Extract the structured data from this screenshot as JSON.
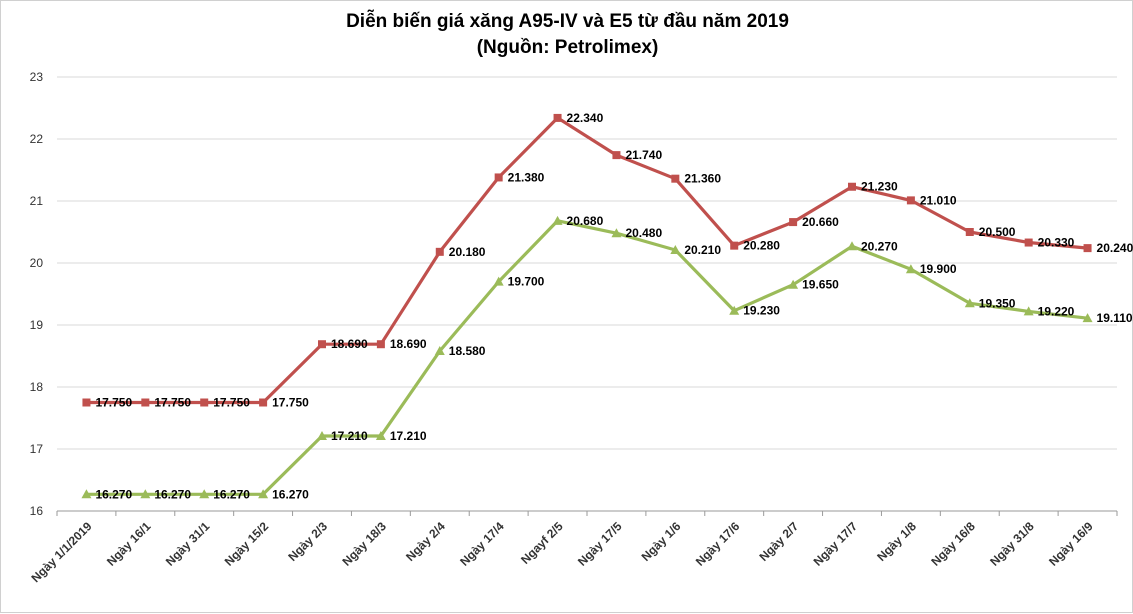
{
  "chart_data": {
    "type": "line",
    "title": "Diễn biến giá xăng A95-IV và E5 từ đầu năm 2019",
    "subtitle": "(Nguồn: Petrolimex)",
    "xlabel": "",
    "ylabel": "",
    "ylim": [
      16,
      23
    ],
    "yticks": [
      "16",
      "17",
      "18",
      "19",
      "20",
      "21",
      "22",
      "23"
    ],
    "grid": true,
    "legend": "none",
    "categories": [
      "Ngày 1/1/2019",
      "Ngày 16/1",
      "Ngày 31/1",
      "Ngày 15/2",
      "Ngày 2/3",
      "Ngày 18/3",
      "Ngày 2/4",
      "Ngày 17/4",
      "Ngayf 2/5",
      "Ngày 17/5",
      "Ngày 1/6",
      "Ngày 17/6",
      "Ngày 2/7",
      "Ngày 17/7",
      "Ngày 1/8",
      "Ngày 16/8",
      "Ngày 31/8",
      "Ngày 16/9"
    ],
    "series": [
      {
        "name": "A95-IV",
        "color": "#c0504d",
        "marker": "square",
        "values": [
          17.75,
          17.75,
          17.75,
          17.75,
          18.69,
          18.69,
          20.18,
          21.38,
          22.34,
          21.74,
          21.36,
          20.28,
          20.66,
          21.23,
          21.01,
          20.5,
          20.33,
          20.24
        ],
        "labels": [
          "17.750",
          "17.750",
          "17.750",
          "17.750",
          "18.690",
          "18.690",
          "20.180",
          "21.380",
          "22.340",
          "21.740",
          "21.360",
          "20.280",
          "20.660",
          "21.230",
          "21.010",
          "20.500",
          "20.330",
          "20.240"
        ]
      },
      {
        "name": "E5",
        "color": "#9bbb59",
        "marker": "triangle",
        "values": [
          16.27,
          16.27,
          16.27,
          16.27,
          17.21,
          17.21,
          18.58,
          19.7,
          20.68,
          20.48,
          20.21,
          19.23,
          19.65,
          20.27,
          19.9,
          19.35,
          19.22,
          19.11
        ],
        "labels": [
          "16.270",
          "16.270",
          "16.270",
          "16.270",
          "17.210",
          "17.210",
          "18.580",
          "19.700",
          "20.680",
          "20.480",
          "20.210",
          "19.230",
          "19.650",
          "20.270",
          "19.900",
          "19.350",
          "19.220",
          "19.110"
        ]
      }
    ]
  }
}
